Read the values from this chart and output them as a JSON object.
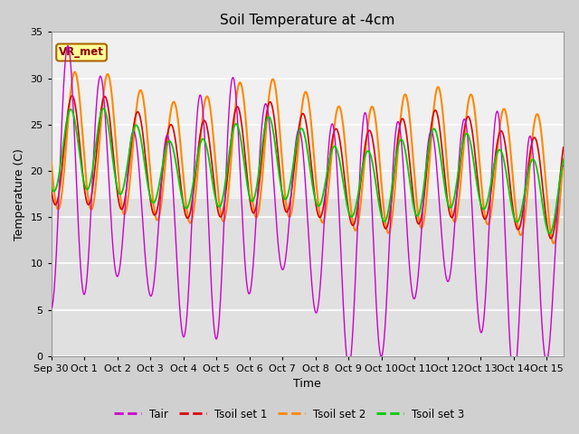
{
  "title": "Soil Temperature at -4cm",
  "xlabel": "Time",
  "ylabel": "Temperature (C)",
  "ylim": [
    0,
    35
  ],
  "xlim": [
    0,
    15.5
  ],
  "fig_bg_color": "#d0d0d0",
  "plot_bg_color": "#e8e8e8",
  "plot_bg_upper": "#f0f0f0",
  "grid_color": "white",
  "annotation_text": "VR_met",
  "annotation_bg": "#ffff99",
  "annotation_border": "#aa6600",
  "annotation_text_color": "#880000",
  "series_colors": {
    "Tair": "#cc00cc",
    "Tsoil1": "#dd0000",
    "Tsoil2": "#ff8800",
    "Tsoil3": "#00cc00"
  },
  "legend_labels": [
    "Tair",
    "Tsoil set 1",
    "Tsoil set 2",
    "Tsoil set 3"
  ],
  "x_tick_labels": [
    "Sep 30",
    "Oct 1",
    "Oct 2",
    "Oct 3",
    "Oct 4",
    "Oct 5",
    "Oct 6",
    "Oct 7",
    "Oct 8",
    "Oct 9",
    "Oct 10",
    "Oct 11",
    "Oct 12",
    "Oct 13",
    "Oct 14",
    "Oct 15"
  ],
  "x_tick_positions": [
    0,
    1,
    2,
    3,
    4,
    5,
    6,
    7,
    8,
    9,
    10,
    11,
    12,
    13,
    14,
    15
  ]
}
